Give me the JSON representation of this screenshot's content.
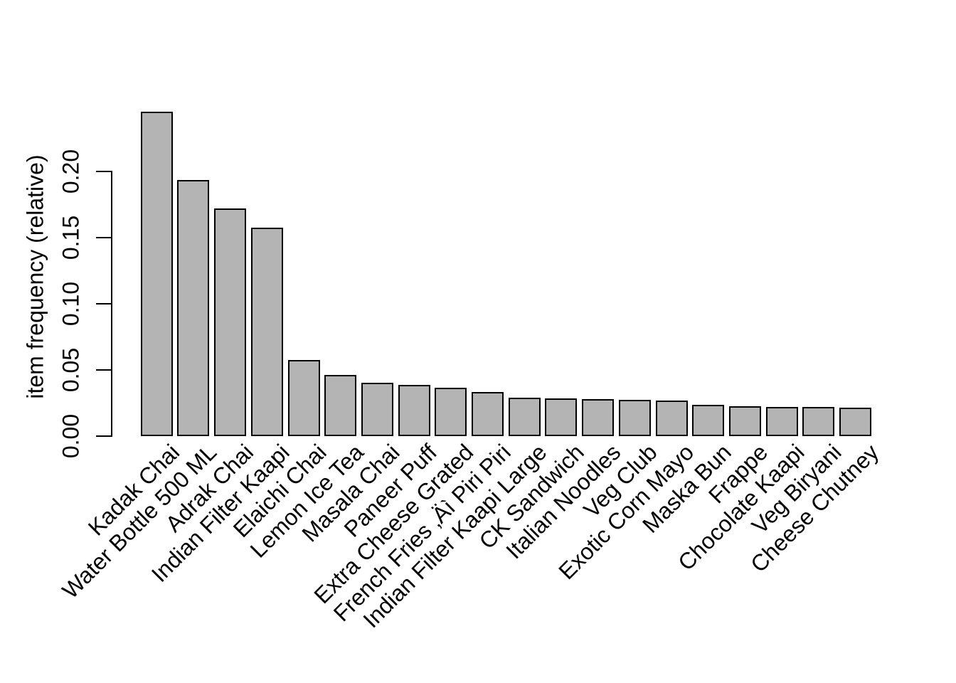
{
  "chart_data": {
    "type": "bar",
    "title": "",
    "xlabel": "",
    "ylabel": "item frequency (relative)",
    "categories": [
      "Kadak Chai",
      "Water Bottle 500 ML",
      "Adrak Chai",
      "Indian Filter Kaapi",
      "Elaichi Chai",
      "Lemon Ice Tea",
      "Masala Chai",
      "Paneer Puff",
      "Extra Cheese Grated",
      "French Fries ‚Äì Piri Piri",
      "Indian Filter Kaapi Large",
      "CK Sandwich",
      "Italian Noodles",
      "Veg Club",
      "Exotic Corn Mayo",
      "Maska Bun",
      "Frappe",
      "Chocolate Kaapi",
      "Veg Biryani",
      "Cheese Chutney"
    ],
    "values": [
      0.2453,
      0.1937,
      0.1719,
      0.1575,
      0.0577,
      0.0464,
      0.0403,
      0.0385,
      0.0366,
      0.0333,
      0.029,
      0.0285,
      0.028,
      0.0274,
      0.0269,
      0.0238,
      0.0227,
      0.0222,
      0.0219,
      0.0217
    ],
    "ylim": [
      0,
      0.25
    ],
    "yticks": [
      0,
      0.05,
      0.1,
      0.15,
      0.2
    ],
    "ytick_labels": [
      "0.00",
      "0.05",
      "0.10",
      "0.15",
      "0.20"
    ],
    "grid": false,
    "legend": false,
    "x_label_rotation_deg": 45,
    "y_tick_label_rotation_deg": 90,
    "colors": {
      "bar_fill": "#b4b4b4",
      "bar_border": "#000000",
      "axis": "#000000",
      "background": "#ffffff",
      "text": "#000000"
    }
  }
}
